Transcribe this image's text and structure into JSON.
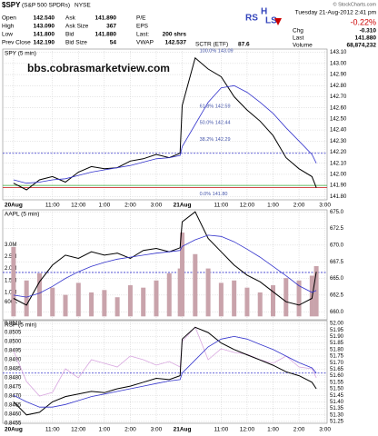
{
  "header": {
    "symbol": "$SPY",
    "name": "(S&P 500 SPDRs)",
    "exchange": "NYSE",
    "source": "© StockCharts.com",
    "date": "Tuesday 21-Aug-2012 2:41 pm",
    "change_pct": "-0.22%",
    "quote": [
      [
        "Open",
        "142.540"
      ],
      [
        "High",
        "143.090"
      ],
      [
        "Low",
        "141.800"
      ],
      [
        "Prev Close",
        "142.190"
      ]
    ],
    "quote2": [
      [
        "Ask",
        "141.890"
      ],
      [
        "Ask Size",
        "367"
      ],
      [
        "Bid",
        "141.880"
      ],
      [
        "Bid Size",
        "54"
      ]
    ],
    "quote3": [
      [
        "P/E"
      ],
      [
        "EPS"
      ],
      [
        "Last:",
        "200 shrs"
      ],
      [
        "VWAP",
        "142.537"
      ]
    ],
    "stats": [
      [
        "Chg",
        "-0.310"
      ],
      [
        "Last",
        "141.880"
      ],
      [
        "Volume",
        "68,874,232"
      ]
    ],
    "sctr": [
      "SCTR (ETF)",
      "87.6"
    ],
    "logo": [
      "RS",
      "H",
      "LS"
    ],
    "watermark": "bbs.cobrasmarketview.com"
  },
  "chart_data": [
    {
      "type": "line",
      "title": "SPY (5 min)",
      "x": [
        0,
        6,
        12,
        18,
        24,
        30,
        36,
        42,
        48,
        54,
        60,
        66,
        72,
        77,
        78,
        84,
        90,
        96,
        102,
        108,
        114,
        120,
        126,
        132,
        138,
        140
      ],
      "series": [
        {
          "color": "#000000",
          "values": [
            141.92,
            141.86,
            141.95,
            141.98,
            141.93,
            142.02,
            142.07,
            142.05,
            142.06,
            142.12,
            142.14,
            142.18,
            142.15,
            142.19,
            142.62,
            143.05,
            142.95,
            142.88,
            142.7,
            142.58,
            142.48,
            142.35,
            142.15,
            142.05,
            141.98,
            141.88
          ]
        },
        {
          "color": "#3333cc",
          "values": [
            141.95,
            141.92,
            141.93,
            141.95,
            141.96,
            141.99,
            142.02,
            142.04,
            142.06,
            142.08,
            142.11,
            142.14,
            142.15,
            142.17,
            142.25,
            142.45,
            142.65,
            142.78,
            142.8,
            142.74,
            142.65,
            142.55,
            142.42,
            142.3,
            142.18,
            142.1
          ]
        }
      ],
      "xlim": [
        -5,
        145
      ],
      "xticks": [
        {
          "value": 0,
          "label": "20Aug"
        },
        {
          "value": 18,
          "label": "11:00"
        },
        {
          "value": 30,
          "label": "12:00"
        },
        {
          "value": 42,
          "label": "1:00"
        },
        {
          "value": 54,
          "label": "2:00"
        },
        {
          "value": 66,
          "label": "3:00"
        },
        {
          "value": 78,
          "label": "21Aug"
        },
        {
          "value": 96,
          "label": "11:00"
        },
        {
          "value": 108,
          "label": "12:00"
        },
        {
          "value": 120,
          "label": "1:00"
        },
        {
          "value": 132,
          "label": "2:00"
        },
        {
          "value": 144,
          "label": "3:00"
        }
      ],
      "ylim": [
        141.77,
        143.13
      ],
      "yticks": [
        {
          "value": 141.8,
          "label": "141.80"
        },
        {
          "value": 141.9,
          "label": "141.90"
        },
        {
          "value": 142,
          "label": "142.00"
        },
        {
          "value": 142.1,
          "label": "142.10"
        },
        {
          "value": 142.2,
          "label": "142.20"
        },
        {
          "value": 142.3,
          "label": "142.30"
        },
        {
          "value": 142.4,
          "label": "142.40"
        },
        {
          "value": 142.5,
          "label": "142.50"
        },
        {
          "value": 142.6,
          "label": "142.60"
        },
        {
          "value": 142.7,
          "label": "142.70"
        },
        {
          "value": 142.8,
          "label": "142.80"
        },
        {
          "value": 142.9,
          "label": "142.90"
        },
        {
          "value": 143,
          "label": "143.00"
        },
        {
          "value": 143.1,
          "label": "143.10"
        }
      ],
      "grid": true,
      "hlines": [
        {
          "value": 142.19,
          "color": "#3333cc",
          "dash": true
        },
        {
          "value": 141.9,
          "color": "#33aa33"
        },
        {
          "value": 141.88,
          "color": "#cc3333"
        }
      ],
      "annotations": [
        {
          "text": "100.0%  143.09",
          "value": 143.09,
          "x": 86
        },
        {
          "text": "61.8%  142.59",
          "value": 142.59,
          "x": 86
        },
        {
          "text": "50.0%  142.44",
          "value": 142.44,
          "x": 86
        },
        {
          "text": "38.2%  142.29",
          "value": 142.29,
          "x": 86
        },
        {
          "text": "0.0%  141.80",
          "value": 141.8,
          "x": 86
        }
      ]
    },
    {
      "type": "line",
      "title": "AAPL (5 min)",
      "x": [
        0,
        6,
        12,
        18,
        24,
        30,
        36,
        42,
        48,
        54,
        60,
        66,
        72,
        77,
        78,
        84,
        90,
        96,
        102,
        108,
        114,
        120,
        126,
        132,
        138,
        140
      ],
      "series": [
        {
          "type": "bar",
          "axis": "y2",
          "color": "#c9a3ab",
          "values": [
            2900000,
            1500000,
            1800000,
            1200000,
            900000,
            1400000,
            1000000,
            1100000,
            800000,
            1300000,
            1200000,
            1500000,
            1800000,
            2000000,
            3500000,
            2600000,
            2000000,
            1400000,
            1500000,
            1200000,
            1000000,
            1300000,
            1600000,
            1500000,
            1700000,
            2100000
          ]
        },
        {
          "color": "#000000",
          "values": [
            662.0,
            661.0,
            664.5,
            667.0,
            668.5,
            668.0,
            669.0,
            668.5,
            668.8,
            668.0,
            669.2,
            669.5,
            669.0,
            669.6,
            673.5,
            675.0,
            671.0,
            669.0,
            667.0,
            665.5,
            664.5,
            663.0,
            661.5,
            661.0,
            662.0,
            666.0
          ]
        },
        {
          "color": "#3333cc",
          "values": [
            662.5,
            662.2,
            662.8,
            663.8,
            665.0,
            666.0,
            666.8,
            667.4,
            667.9,
            668.2,
            668.5,
            668.8,
            669.0,
            669.2,
            669.8,
            670.8,
            671.5,
            671.3,
            670.5,
            669.4,
            668.2,
            666.8,
            665.4,
            663.9,
            662.9,
            663.2
          ]
        }
      ],
      "xlim": [
        -5,
        145
      ],
      "ylim": [
        658.8,
        675.3
      ],
      "yticks": [
        {
          "value": 660,
          "label": "660.0"
        },
        662.5,
        {
          "value": 665,
          "label": "665.0"
        },
        667.5,
        {
          "value": 670,
          "label": "670.0"
        },
        672.5,
        {
          "value": 675,
          "label": "675.0"
        }
      ],
      "y2lim": [
        -140000,
        4450000
      ],
      "y2ticks": [
        {
          "value": 600000,
          "label": "600K"
        },
        {
          "value": 1000000,
          "label": "1.0M"
        },
        {
          "value": 1500000,
          "label": "1.5M"
        },
        {
          "value": 2000000,
          "label": "2.0M"
        },
        {
          "value": 2500000,
          "label": "2.5M"
        },
        {
          "value": 3000000,
          "label": "3.0M"
        }
      ],
      "grid": true,
      "hlines": [
        {
          "value": 665.9,
          "color": "#3333cc",
          "dash": true
        }
      ]
    },
    {
      "type": "line",
      "title": "RSP (5 min)",
      "x": [
        0,
        6,
        12,
        18,
        24,
        30,
        36,
        42,
        48,
        54,
        60,
        66,
        72,
        77,
        78,
        84,
        90,
        96,
        102,
        108,
        114,
        120,
        126,
        132,
        138,
        140
      ],
      "series": [
        {
          "axis": "y2",
          "color": "#d9a8e0",
          "values": [
            0.8495,
            0.8478,
            0.847,
            0.8472,
            0.8485,
            0.848,
            0.849,
            0.8488,
            0.8486,
            0.8492,
            0.849,
            0.8487,
            0.8489,
            0.8486,
            0.85,
            0.8508,
            0.849,
            0.8496,
            0.8494,
            0.8493,
            0.849,
            0.8488,
            0.8492,
            0.8486,
            0.8485,
            0.848
          ]
        },
        {
          "color": "#000000",
          "values": [
            51.4,
            51.3,
            51.32,
            51.4,
            51.44,
            51.46,
            51.48,
            51.47,
            51.5,
            51.52,
            51.55,
            51.58,
            51.57,
            51.6,
            51.88,
            51.97,
            51.93,
            51.85,
            51.8,
            51.76,
            51.72,
            51.68,
            51.63,
            51.6,
            51.55,
            51.5
          ]
        },
        {
          "color": "#3333cc",
          "values": [
            51.45,
            51.4,
            51.36,
            51.36,
            51.38,
            51.41,
            51.44,
            51.46,
            51.48,
            51.5,
            51.52,
            51.54,
            51.56,
            51.57,
            51.62,
            51.72,
            51.82,
            51.88,
            51.9,
            51.88,
            51.84,
            51.8,
            51.75,
            51.7,
            51.66,
            51.62
          ]
        }
      ],
      "xlim": [
        -5,
        145
      ],
      "xticks": [
        {
          "value": 0,
          "label": "20Aug"
        },
        {
          "value": 18,
          "label": "11:00"
        },
        {
          "value": 30,
          "label": "12:00"
        },
        {
          "value": 42,
          "label": "1:00"
        },
        {
          "value": 54,
          "label": "2:00"
        },
        {
          "value": 66,
          "label": "3:00"
        },
        {
          "value": 78,
          "label": "21Aug"
        },
        {
          "value": 96,
          "label": "11:00"
        },
        {
          "value": 108,
          "label": "12:00"
        },
        {
          "value": 120,
          "label": "1:00"
        },
        {
          "value": 132,
          "label": "2:00"
        },
        {
          "value": 144,
          "label": "3:00"
        }
      ],
      "ylim": [
        51.236,
        52.021
      ],
      "yticks": [
        {
          "value": 52,
          "label": "52.00"
        },
        51.95,
        {
          "value": 51.9,
          "label": "51.90"
        },
        51.85,
        {
          "value": 51.8,
          "label": "51.80"
        },
        51.75,
        {
          "value": 51.7,
          "label": "51.70"
        },
        51.65,
        {
          "value": 51.6,
          "label": "51.60"
        },
        51.55,
        {
          "value": 51.5,
          "label": "51.50"
        },
        51.45,
        {
          "value": 51.4,
          "label": "51.40"
        },
        51.35,
        {
          "value": 51.3,
          "label": "51.30"
        },
        51.25
      ],
      "y2lim": [
        0.8455,
        0.85115
      ],
      "y2ticks": [
        {
          "value": 0.851,
          "label": "0.8510"
        },
        0.8505,
        {
          "value": 0.85,
          "label": "0.8500"
        },
        0.8495,
        {
          "value": 0.849,
          "label": "0.8490"
        },
        0.8485,
        {
          "value": 0.848,
          "label": "0.8480"
        },
        0.8475,
        {
          "value": 0.847,
          "label": "0.8470"
        },
        0.8465,
        {
          "value": 0.846,
          "label": "0.8460"
        },
        0.8455
      ],
      "grid": true,
      "hlines": [
        {
          "value": 51.62,
          "color": "#3333cc",
          "dash": true
        }
      ]
    }
  ]
}
